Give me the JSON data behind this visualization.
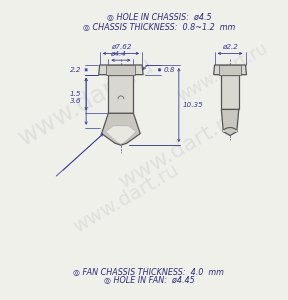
{
  "bg_color": "#f0f0eb",
  "line_color": "#3a3a9a",
  "dim_color": "#3a3a9a",
  "text_color": "#2a2a7a",
  "part_fill": "#d8d8d0",
  "part_fill2": "#c8c8c0",
  "part_edge": "#555555",
  "title_lines": [
    "◎ HOLE IN CHASSIS:  ø4.5",
    "◎ CHASSIS THICKNESS:  0.8~1.2  mm"
  ],
  "bottom_lines": [
    "◎ HOLE IN FAN:  ø4.45",
    "◎ FAN CHASSIS THICKNESS:  4.0  mm"
  ],
  "dims": {
    "d762": "ø7.62",
    "d44": "ø4.4",
    "d22": "ø2.2",
    "d08": "0.8",
    "d22_left": "2.2",
    "d15": "1.5",
    "d36": "3.6",
    "d1035": "10.35"
  },
  "watermark": "www.dart.ru"
}
